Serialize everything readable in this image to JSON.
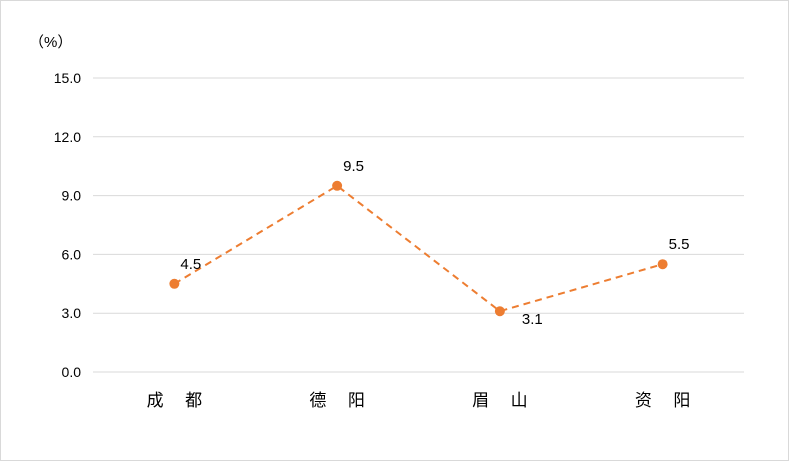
{
  "chart_data": {
    "type": "line",
    "unit_label": "（%）",
    "categories": [
      "成都",
      "德阳",
      "眉山",
      "资阳"
    ],
    "category_labels": [
      "成 都",
      "德 阳",
      "眉 山",
      "资 阳"
    ],
    "values": [
      4.5,
      9.5,
      3.1,
      5.5
    ],
    "data_labels": [
      "4.5",
      "9.5",
      "3.1",
      "5.5"
    ],
    "yticks": [
      "0.0",
      "3.0",
      "6.0",
      "9.0",
      "12.0",
      "15.0"
    ],
    "ylim": [
      0,
      15
    ],
    "grid": true,
    "line_style": "dashed",
    "marker": "circle",
    "colors": {
      "series": "#ED7D31",
      "grid": "#D9D9D9"
    }
  }
}
